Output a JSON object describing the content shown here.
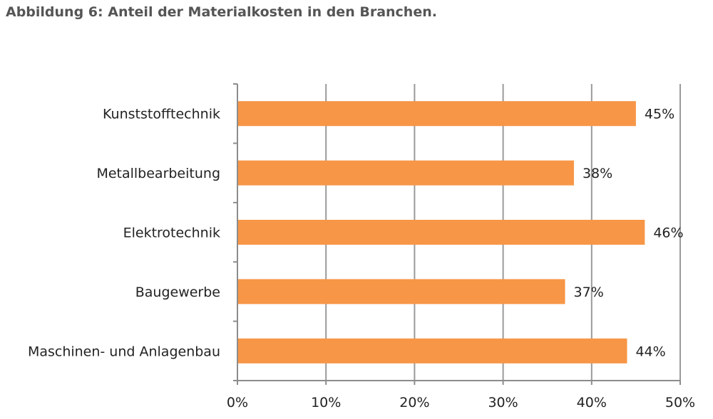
{
  "title": "Abbildung 6: Anteil der Materialkosten in den Branchen.",
  "colors": {
    "bar": "#F79646",
    "grid": "#9A9A9A",
    "axis": "#8C8C8C",
    "text": "#222222",
    "title": "#555555"
  },
  "chart_data": {
    "type": "bar",
    "orientation": "horizontal",
    "categories": [
      "Kunststofftechnik",
      "Metallbearbeitung",
      "Elektrotechnik",
      "Baugewerbe",
      "Maschinen- und Anlagenbau"
    ],
    "values": [
      45,
      38,
      46,
      37,
      44
    ],
    "data_labels": [
      "45%",
      "38%",
      "46%",
      "37%",
      "44%"
    ],
    "xlim": [
      0,
      50
    ],
    "x_ticks": [
      0,
      10,
      20,
      30,
      40,
      50
    ],
    "x_tick_labels": [
      "0%",
      "10%",
      "20%",
      "30%",
      "40%",
      "50%"
    ],
    "grid": true,
    "legend": false
  }
}
